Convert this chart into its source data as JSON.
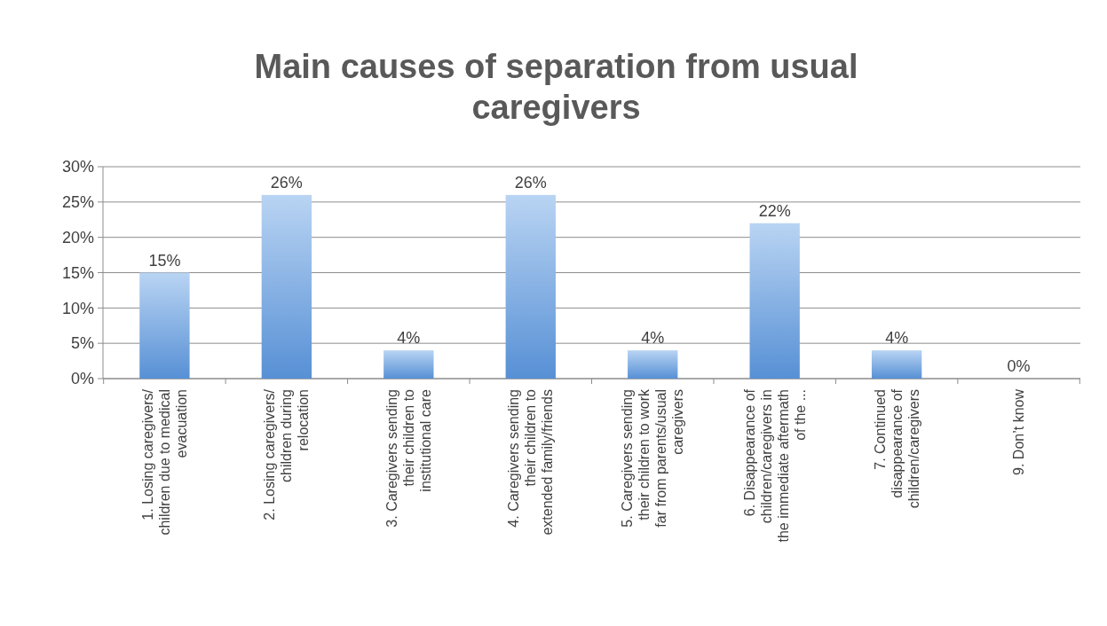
{
  "chart_data": {
    "type": "bar",
    "title": "Main causes of separation from usual caregivers",
    "categories": [
      "1. Losing caregivers/ children due to medical evacuation",
      "2. Losing caregivers/ children during relocation",
      "3. Caregivers sending their children to institutional care",
      "4. Caregivers sending their children to extended family/friends",
      "5. Caregivers sending their children to work far from parents/usual caregivers",
      "6. Disappearance of children/caregivers in the immediate aftermath of the ...",
      "7. Continued disappearance of children/caregivers",
      "9. Don’t know"
    ],
    "values": [
      15,
      26,
      4,
      26,
      4,
      22,
      4,
      0
    ],
    "value_labels": [
      "15%",
      "26%",
      "4%",
      "26%",
      "4%",
      "22%",
      "4%",
      "0%"
    ],
    "color": "#7fb1ea",
    "ylim": [
      0,
      30
    ],
    "yticks": [
      {
        "value": 0,
        "label": "0%"
      },
      {
        "value": 5,
        "label": "5%"
      },
      {
        "value": 10,
        "label": "10%"
      },
      {
        "value": 15,
        "label": "15%"
      },
      {
        "value": 20,
        "label": "20%"
      },
      {
        "value": 25,
        "label": "25%"
      },
      {
        "value": 30,
        "label": "30%"
      }
    ],
    "grid": "y"
  }
}
